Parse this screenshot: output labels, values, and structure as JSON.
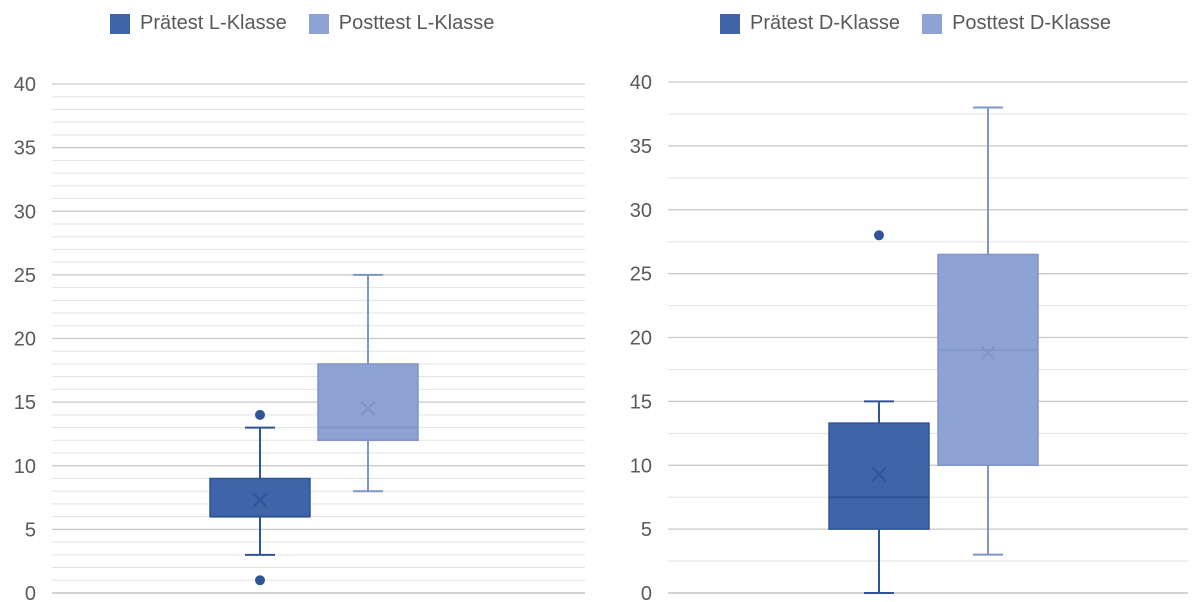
{
  "chart_data": [
    {
      "type": "box",
      "title": "",
      "xlabel": "",
      "ylabel": "",
      "ylim": [
        0,
        40
      ],
      "yticks": [
        "0",
        "5",
        "10",
        "15",
        "20",
        "25",
        "30",
        "35",
        "40"
      ],
      "grid": true,
      "minor_grid": true,
      "legend_position": "top",
      "series": [
        {
          "name": "Prätest L-Klasse",
          "color": "#3F64AA",
          "min": 3,
          "q1": 6,
          "median": 6,
          "q3": 9,
          "max": 13,
          "mean": 7.3,
          "outliers": [
            1,
            14
          ]
        },
        {
          "name": "Posttest L-Klasse",
          "color": "#8EA3D3",
          "min": 8,
          "q1": 12,
          "median": 13,
          "q3": 18,
          "max": 25,
          "mean": 14.5,
          "outliers": []
        }
      ]
    },
    {
      "type": "box",
      "title": "",
      "xlabel": "",
      "ylabel": "",
      "ylim": [
        0,
        40
      ],
      "yticks": [
        "0",
        "5",
        "10",
        "15",
        "20",
        "25",
        "30",
        "35",
        "40"
      ],
      "grid": true,
      "minor_grid": true,
      "legend_position": "top",
      "series": [
        {
          "name": "Prätest D-Klasse",
          "color": "#3F64AA",
          "min": 0,
          "q1": 5,
          "median": 7.5,
          "q3": 13.3,
          "max": 15,
          "mean": 9.3,
          "outliers": [
            28
          ]
        },
        {
          "name": "Posttest D-Klasse",
          "color": "#8EA3D3",
          "min": 3,
          "q1": 10,
          "median": 19,
          "q3": 26.5,
          "max": 38,
          "mean": 18.8,
          "outliers": []
        }
      ]
    }
  ]
}
